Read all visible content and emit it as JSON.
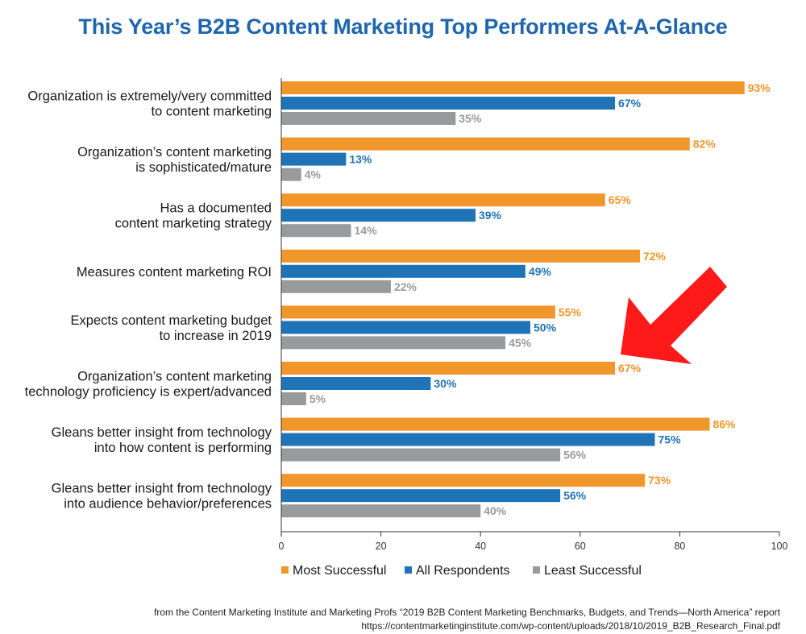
{
  "title": "This Year’s B2B Content Marketing Top Performers At-A-Glance",
  "source": {
    "line1": "from the Content Marketing Institute and Marketing Profs “2019 B2B Content Marketing Benchmarks, Budgets, and Trends—North America” report",
    "line2": "https://contentmarketinginstitute.com/wp-content/uploads/2018/10/2019_B2B_Research_Final.pdf"
  },
  "annotation": {
    "type": "arrow",
    "color": "#ff1a1a",
    "icon": "red-arrow-icon"
  },
  "chart_data": {
    "type": "bar",
    "orientation": "horizontal",
    "title": "This Year’s B2B Content Marketing Top Performers At-A-Glance",
    "categories": [
      [
        "Organization is extremely/very committed",
        "to content marketing"
      ],
      [
        "Organization’s content marketing",
        "is sophisticated/mature"
      ],
      [
        "Has a documented",
        "content marketing strategy"
      ],
      [
        "Measures content marketing ROI"
      ],
      [
        "Expects content marketing budget",
        "to increase in 2019"
      ],
      [
        "Organization’s content marketing",
        "technology proficiency is expert/advanced"
      ],
      [
        "Gleans better insight from technology",
        "into how content is performing"
      ],
      [
        "Gleans better insight from technology",
        "into audience behavior/preferences"
      ]
    ],
    "series": [
      {
        "name": "Most Successful",
        "color": "#f0962a",
        "values": [
          93,
          82,
          65,
          72,
          55,
          67,
          86,
          73
        ]
      },
      {
        "name": "All Respondents",
        "color": "#1f73b7",
        "values": [
          67,
          13,
          39,
          49,
          50,
          30,
          75,
          56
        ]
      },
      {
        "name": "Least Successful",
        "color": "#999a9c",
        "values": [
          35,
          4,
          14,
          22,
          45,
          5,
          56,
          40
        ]
      }
    ],
    "value_suffix": "%",
    "xlim": [
      0,
      100
    ],
    "xticks": [
      0,
      20,
      40,
      60,
      80,
      100
    ],
    "xlabel": "",
    "ylabel": "",
    "grid": false,
    "legend": {
      "position": "bottom"
    }
  }
}
